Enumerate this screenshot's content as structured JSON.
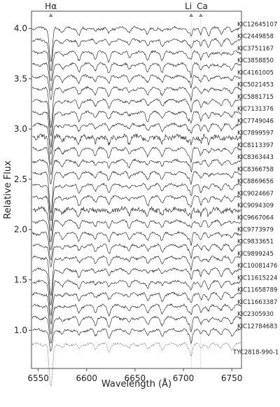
{
  "chart_data": {
    "type": "line",
    "xlabel": "Wavelength (Å)",
    "ylabel": "Relative Flux",
    "xlim": [
      6543,
      6760
    ],
    "ylim": [
      0.62,
      4.17
    ],
    "x_ticks": [
      6550,
      6600,
      6650,
      6700,
      6750
    ],
    "y_ticks": [
      1.0,
      1.5,
      2.0,
      2.5,
      3.0,
      3.5,
      4.0
    ],
    "y_tick_labels": [
      "1.0",
      "1.5",
      "2.0",
      "2.5",
      "3.0",
      "3.5",
      "4.0"
    ],
    "grid": false,
    "line_markers": [
      {
        "label": "Hα",
        "wavelength": 6563
      },
      {
        "label": "Li",
        "wavelength": 6708
      },
      {
        "label": "Ca",
        "wavelength": 6718
      }
    ],
    "series": [
      {
        "name": "KIC12645107",
        "continuum": 4.0
      },
      {
        "name": "KIC2449858",
        "continuum": 3.88
      },
      {
        "name": "KIC3751167",
        "continuum": 3.76
      },
      {
        "name": "KIC3858850",
        "continuum": 3.64
      },
      {
        "name": "KIC4161005",
        "continuum": 3.52
      },
      {
        "name": "KIC5021453",
        "continuum": 3.4
      },
      {
        "name": "KIC5881715",
        "continuum": 3.28
      },
      {
        "name": "KIC7131376",
        "continuum": 3.16
      },
      {
        "name": "KIC7749046",
        "continuum": 3.04
      },
      {
        "name": "KIC7899597",
        "continuum": 2.92
      },
      {
        "name": "KIC8113397",
        "continuum": 2.8
      },
      {
        "name": "KIC8363443",
        "continuum": 2.68
      },
      {
        "name": "KIC8366758",
        "continuum": 2.56
      },
      {
        "name": "KIC8869656",
        "continuum": 2.44
      },
      {
        "name": "KIC9024667",
        "continuum": 2.32
      },
      {
        "name": "KIC9094309",
        "continuum": 2.2
      },
      {
        "name": "KIC9667064",
        "continuum": 2.08
      },
      {
        "name": "KIC9773979",
        "continuum": 1.96
      },
      {
        "name": "KIC9833651",
        "continuum": 1.84
      },
      {
        "name": "KIC9899245",
        "continuum": 1.72
      },
      {
        "name": "KIC10081476",
        "continuum": 1.6
      },
      {
        "name": "KIC11615224",
        "continuum": 1.48
      },
      {
        "name": "KIC11658789",
        "continuum": 1.36
      },
      {
        "name": "KIC11663387",
        "continuum": 1.24
      },
      {
        "name": "KIC2305930",
        "continuum": 1.12
      },
      {
        "name": "KIC12784683",
        "continuum": 1.0
      },
      {
        "name": "TYC2818-990-1",
        "continuum": 0.86,
        "style": "dotted"
      }
    ]
  }
}
